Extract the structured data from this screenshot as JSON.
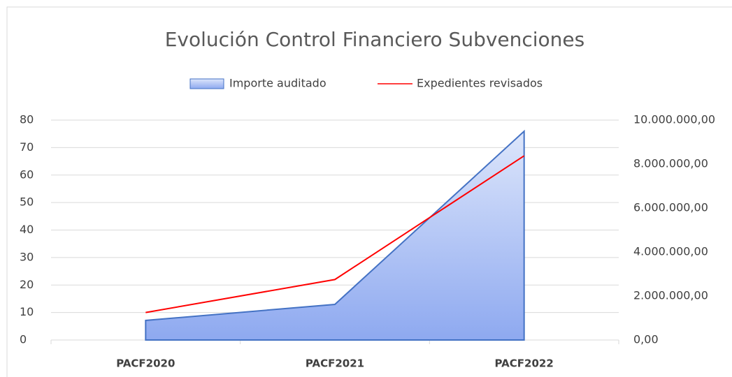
{
  "chart_data": {
    "type": "combo",
    "title": "Evolución Control Financiero Subvenciones",
    "categories": [
      "PACF2020",
      "PACF2021",
      "PACF2022"
    ],
    "series": [
      {
        "name": "Importe auditado",
        "type": "area",
        "color": "#4472c4",
        "axis": "y2",
        "values": [
          890000,
          1620000,
          9490000
        ]
      },
      {
        "name": "Expedientes revisados",
        "type": "line",
        "color": "#ff0000",
        "values": [
          10,
          22,
          67
        ]
      }
    ],
    "ylim": [
      0,
      80
    ],
    "yticks": [
      0,
      10,
      20,
      30,
      40,
      50,
      60,
      70,
      80
    ],
    "y2lim": [
      0,
      10000000
    ],
    "y2ticks": [
      {
        "value": 0,
        "label": "0,00"
      },
      {
        "value": 2000000,
        "label": "2.000.000,00"
      },
      {
        "value": 4000000,
        "label": "4.000.000,00"
      },
      {
        "value": 6000000,
        "label": "6.000.000,00"
      },
      {
        "value": 8000000,
        "label": "8.000.000,00"
      },
      {
        "value": 10000000,
        "label": "10.000.000,00"
      }
    ],
    "grid": true,
    "legend": "top"
  }
}
